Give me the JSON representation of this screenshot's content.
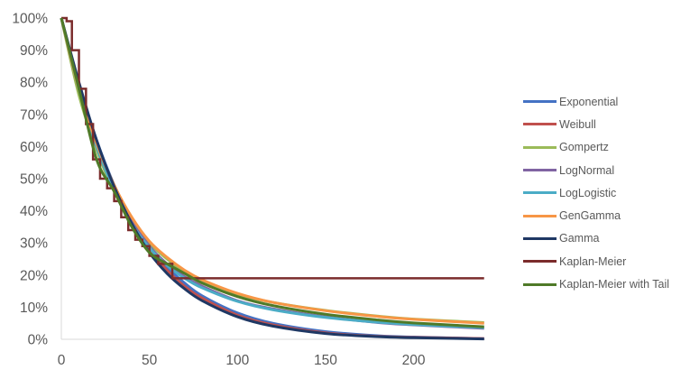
{
  "chart_data": {
    "type": "line",
    "title": "",
    "xlabel": "",
    "ylabel": "",
    "xlim": [
      0,
      240
    ],
    "ylim": [
      0,
      1
    ],
    "x_ticks": [
      0,
      50,
      100,
      150,
      200
    ],
    "x_tick_labels": [
      "0",
      "50",
      "100",
      "150",
      "200"
    ],
    "y_ticks": [
      0,
      0.1,
      0.2,
      0.3,
      0.4,
      0.5,
      0.6,
      0.7,
      0.8,
      0.9,
      1.0
    ],
    "y_tick_labels": [
      "0%",
      "10%",
      "20%",
      "30%",
      "40%",
      "50%",
      "60%",
      "70%",
      "80%",
      "90%",
      "100%"
    ],
    "grid": false,
    "legend_position": "right",
    "x": [
      0,
      10,
      20,
      30,
      40,
      50,
      60,
      70,
      80,
      100,
      120,
      150,
      180,
      200,
      240
    ],
    "series": [
      {
        "name": "Exponential",
        "color": "#4472C4",
        "values": [
          1.0,
          0.79,
          0.62,
          0.48,
          0.37,
          0.29,
          0.225,
          0.175,
          0.135,
          0.082,
          0.05,
          0.024,
          0.011,
          0.007,
          0.002
        ]
      },
      {
        "name": "Weibull",
        "color": "#C0504D",
        "values": [
          1.0,
          0.79,
          0.61,
          0.475,
          0.365,
          0.28,
          0.215,
          0.165,
          0.128,
          0.075,
          0.045,
          0.02,
          0.009,
          0.006,
          0.002
        ]
      },
      {
        "name": "Gompertz",
        "color": "#9BBB59",
        "values": [
          1.0,
          0.76,
          0.59,
          0.46,
          0.37,
          0.3,
          0.25,
          0.21,
          0.18,
          0.14,
          0.115,
          0.09,
          0.072,
          0.063,
          0.052
        ]
      },
      {
        "name": "LogNormal",
        "color": "#8064A2",
        "values": [
          1.0,
          0.78,
          0.6,
          0.47,
          0.37,
          0.29,
          0.235,
          0.195,
          0.165,
          0.12,
          0.095,
          0.07,
          0.052,
          0.045,
          0.034
        ]
      },
      {
        "name": "LogLogistic",
        "color": "#4BACC6",
        "values": [
          1.0,
          0.78,
          0.6,
          0.465,
          0.36,
          0.285,
          0.23,
          0.19,
          0.16,
          0.118,
          0.092,
          0.068,
          0.053,
          0.046,
          0.036
        ]
      },
      {
        "name": "GenGamma",
        "color": "#F79646",
        "values": [
          1.0,
          0.78,
          0.61,
          0.48,
          0.38,
          0.305,
          0.255,
          0.215,
          0.185,
          0.143,
          0.115,
          0.089,
          0.071,
          0.062,
          0.05
        ]
      },
      {
        "name": "Gamma",
        "color": "#1F3864",
        "values": [
          1.0,
          0.8,
          0.62,
          0.475,
          0.36,
          0.27,
          0.205,
          0.157,
          0.12,
          0.07,
          0.041,
          0.018,
          0.008,
          0.005,
          0.001
        ]
      },
      {
        "name": "Kaplan-Meier",
        "color": "#7B2C2C",
        "values": [
          1.0,
          0.78,
          0.56,
          0.46,
          0.35,
          0.27,
          0.235,
          0.19,
          0.19,
          0.19,
          0.19,
          0.19,
          0.19,
          0.19,
          0.19
        ]
      },
      {
        "name": "Kaplan-Meier with Tail",
        "color": "#4F7A28",
        "values": [
          1.0,
          0.78,
          0.56,
          0.46,
          0.35,
          0.27,
          0.235,
          0.205,
          0.175,
          0.133,
          0.105,
          0.078,
          0.06,
          0.051,
          0.039
        ]
      }
    ]
  },
  "legend": {
    "items": [
      {
        "label": "Exponential",
        "color": "#4472C4"
      },
      {
        "label": "Weibull",
        "color": "#C0504D"
      },
      {
        "label": "Gompertz",
        "color": "#9BBB59"
      },
      {
        "label": "LogNormal",
        "color": "#8064A2"
      },
      {
        "label": "LogLogistic",
        "color": "#4BACC6"
      },
      {
        "label": "GenGamma",
        "color": "#F79646"
      },
      {
        "label": "Gamma",
        "color": "#1F3864"
      },
      {
        "label": "Kaplan-Meier",
        "color": "#7B2C2C"
      },
      {
        "label": "Kaplan-Meier with Tail",
        "color": "#4F7A28"
      }
    ]
  }
}
